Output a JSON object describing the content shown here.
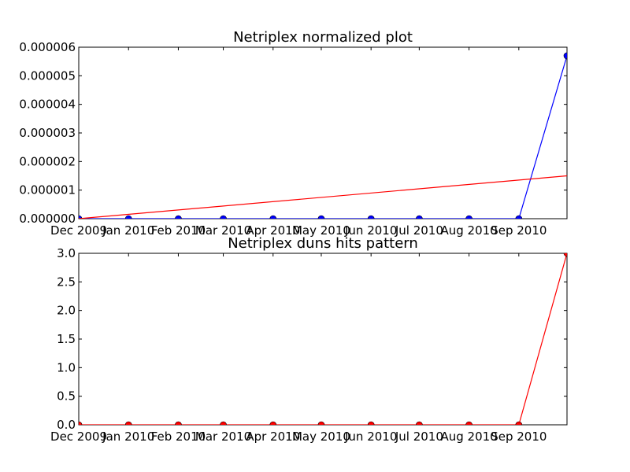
{
  "chart_data": [
    {
      "type": "line",
      "title": "Netriplex normalized plot",
      "xlabel": "",
      "ylabel": "",
      "x_tick_labels": [
        "Dec 2009",
        "Jan 2010",
        "Feb 2010",
        "Mar 2010",
        "Apr 2010",
        "May 2010",
        "Jun 2010",
        "Jul 2010",
        "Aug 2010",
        "Sep 2010"
      ],
      "y_tick_labels": [
        "0.000000",
        "0.000001",
        "0.000002",
        "0.000003",
        "0.000004",
        "0.000005",
        "0.000006"
      ],
      "ylim": [
        0,
        6e-06
      ],
      "x": [
        "2009-12-01",
        "2010-01-01",
        "2010-02-01",
        "2010-03-01",
        "2010-04-01",
        "2010-05-01",
        "2010-06-01",
        "2010-07-01",
        "2010-08-01",
        "2010-09-01",
        "2010-10-01"
      ],
      "xlim": [
        "2009-12-01",
        "2010-10-01"
      ],
      "series": [
        {
          "color": "#0000ff",
          "marker": "circle",
          "values": [
            0,
            0,
            0,
            0,
            0,
            0,
            0,
            0,
            0,
            0,
            5.7e-06
          ]
        },
        {
          "color": "#ff0000",
          "marker": "none",
          "x": [
            "2009-12-01",
            "2010-10-01"
          ],
          "values": [
            0,
            1.5e-06
          ]
        }
      ],
      "grid": false
    },
    {
      "type": "line",
      "title": "Netriplex duns hits pattern",
      "xlabel": "",
      "ylabel": "",
      "x_tick_labels": [
        "Dec 2009",
        "Jan 2010",
        "Feb 2010",
        "Mar 2010",
        "Apr 2010",
        "May 2010",
        "Jun 2010",
        "Jul 2010",
        "Aug 2010",
        "Sep 2010"
      ],
      "y_tick_labels": [
        "0.0",
        "0.5",
        "1.0",
        "1.5",
        "2.0",
        "2.5",
        "3.0"
      ],
      "ylim": [
        0,
        3
      ],
      "x": [
        "2009-12-01",
        "2010-01-01",
        "2010-02-01",
        "2010-03-01",
        "2010-04-01",
        "2010-05-01",
        "2010-06-01",
        "2010-07-01",
        "2010-08-01",
        "2010-09-01",
        "2010-10-01"
      ],
      "xlim": [
        "2009-12-01",
        "2010-10-01"
      ],
      "series": [
        {
          "color": "#ff0000",
          "marker": "circle",
          "values": [
            0,
            0,
            0,
            0,
            0,
            0,
            0,
            0,
            0,
            0,
            3
          ]
        }
      ],
      "grid": false
    }
  ]
}
